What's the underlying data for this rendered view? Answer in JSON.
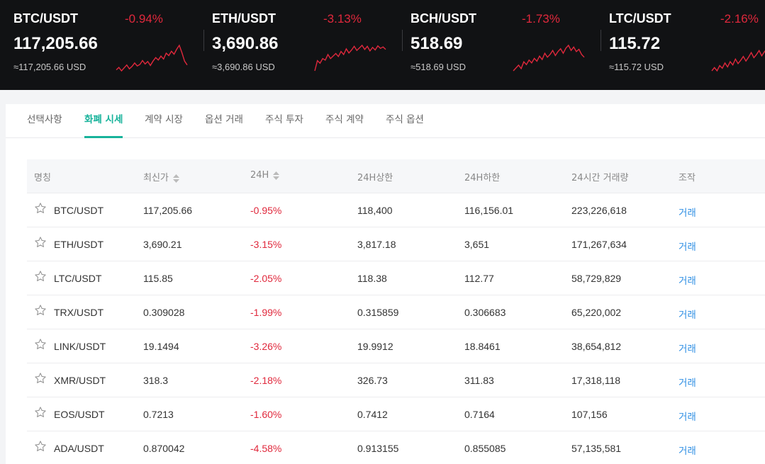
{
  "tickers": [
    {
      "pair": "BTC/USDT",
      "change": "-0.94%",
      "price": "117,205.66",
      "usd": "≈117,205.66 USD",
      "spark": [
        5,
        4.5,
        5.2,
        4.6,
        4,
        4.8,
        4.3,
        3.6,
        4.2,
        3.9,
        3.1,
        3.8,
        3.3,
        4.1,
        3.2,
        2.5,
        3,
        2.2,
        2.8,
        1.6,
        2.1,
        1.2,
        1.8,
        0.8,
        0,
        1.5,
        3.2,
        4
      ]
    },
    {
      "pair": "ETH/USDT",
      "change": "-3.13%",
      "price": "3,690.86",
      "usd": "≈3,690.86 USD",
      "spark": [
        6,
        4,
        4.5,
        3.6,
        3.9,
        2.8,
        3.6,
        3.1,
        2.6,
        3.2,
        2.2,
        2.8,
        1.7,
        2.5,
        1.9,
        1.2,
        2,
        1.5,
        1,
        1.8,
        1.2,
        2.1,
        1.4,
        1.9,
        1.1,
        1.6,
        1.3,
        1.8
      ]
    },
    {
      "pair": "BCH/USDT",
      "change": "-1.73%",
      "price": "518.69",
      "usd": "≈518.69 USD",
      "spark": [
        6,
        5.5,
        5,
        5.6,
        4.4,
        4.9,
        4.1,
        4.6,
        3.8,
        4.3,
        3.4,
        4,
        2.9,
        3.6,
        3.1,
        2.4,
        3.3,
        2.6,
        2.1,
        2.9,
        2,
        1.5,
        2.4,
        1.8,
        2.6,
        2.2,
        3.1,
        3.6
      ]
    },
    {
      "pair": "LTC/USDT",
      "change": "-2.16%",
      "price": "115.72",
      "usd": "≈115.72 USD",
      "spark": [
        5,
        4.5,
        5,
        4.2,
        4.6,
        3.8,
        4.4,
        3.6,
        4.1,
        3.2,
        3.9,
        3.4,
        2.8,
        3.5,
        2.9,
        2.2,
        3,
        2.5,
        1.9,
        2.7,
        2.1,
        1.6,
        2.4,
        1.7,
        1.2,
        2,
        1.5,
        1.1
      ]
    }
  ],
  "tabs": [
    "선택사항",
    "화폐 시세",
    "계약 시장",
    "옵션 거래",
    "주식 투자",
    "주식 계약",
    "주식 옵션"
  ],
  "table": {
    "headers": {
      "name": "명칭",
      "last": "최신가",
      "change": "24H",
      "high": "24H상한",
      "low": "24H하한",
      "volume": "24시간 거래량",
      "action": "조작"
    },
    "rows": [
      {
        "pair": "BTC/USDT",
        "last": "117,205.66",
        "change": "-0.95%",
        "high": "118,400",
        "low": "116,156.01",
        "volume": "223,226,618",
        "action": "거래"
      },
      {
        "pair": "ETH/USDT",
        "last": "3,690.21",
        "change": "-3.15%",
        "high": "3,817.18",
        "low": "3,651",
        "volume": "171,267,634",
        "action": "거래"
      },
      {
        "pair": "LTC/USDT",
        "last": "115.85",
        "change": "-2.05%",
        "high": "118.38",
        "low": "112.77",
        "volume": "58,729,829",
        "action": "거래"
      },
      {
        "pair": "TRX/USDT",
        "last": "0.309028",
        "change": "-1.99%",
        "high": "0.315859",
        "low": "0.306683",
        "volume": "65,220,002",
        "action": "거래"
      },
      {
        "pair": "LINK/USDT",
        "last": "19.1494",
        "change": "-3.26%",
        "high": "19.9912",
        "low": "18.8461",
        "volume": "38,654,812",
        "action": "거래"
      },
      {
        "pair": "XMR/USDT",
        "last": "318.3",
        "change": "-2.18%",
        "high": "326.73",
        "low": "311.83",
        "volume": "17,318,118",
        "action": "거래"
      },
      {
        "pair": "EOS/USDT",
        "last": "0.7213",
        "change": "-1.60%",
        "high": "0.7412",
        "low": "0.7164",
        "volume": "107,156",
        "action": "거래"
      },
      {
        "pair": "ADA/USDT",
        "last": "0.870042",
        "change": "-4.58%",
        "high": "0.913155",
        "low": "0.855085",
        "volume": "57,135,581",
        "action": "거래"
      }
    ]
  },
  "colors": {
    "accent": "#18b39b",
    "negative": "#e0283c",
    "link": "#2f8fe4",
    "ticker_bg": "#111214"
  },
  "icons": {
    "favorite": "star-outline-icon",
    "sort": "sort-arrows-icon"
  }
}
